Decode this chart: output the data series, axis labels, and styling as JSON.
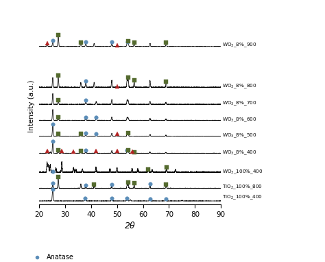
{
  "xlabel": "2θ",
  "ylabel": "Intensity (a.u.)",
  "x_ticks": [
    20,
    30,
    40,
    50,
    60,
    70,
    80,
    90
  ],
  "anatase_color": "#5B8DB8",
  "rutile_color": "#556B2F",
  "wo3_color": "#B22222",
  "offsets": [
    0.0,
    0.55,
    1.25,
    2.1,
    2.85,
    3.55,
    4.25,
    5.0,
    6.8
  ],
  "label_offsets": [
    0.15,
    0.62,
    1.28,
    2.12,
    2.88,
    3.58,
    4.28,
    5.05,
    6.85
  ],
  "label_names": [
    "TiO$_2$_100%_400",
    "TiO$_2$_100%_800",
    "WO$_3$_100%_400",
    "WO$_3$_8%_400",
    "WO$_3$_8%_500",
    "WO$_3$_8%_600",
    "WO$_3$_8%_700",
    "WO$_3$_8%_800",
    "WO$_3$_8%_900"
  ],
  "patterns": [
    {
      "name": "TiO2_400",
      "peaks": [
        25.28,
        37.8,
        48.0,
        53.9,
        55.1,
        62.7,
        68.8,
        75.0
      ],
      "heights": [
        3.5,
        0.55,
        0.7,
        0.65,
        0.4,
        0.45,
        0.3,
        0.2
      ],
      "fwhm": 0.4,
      "noise": 0.025,
      "anatase_markers": [
        25.28,
        37.8,
        48.0,
        53.9,
        62.7,
        68.8
      ],
      "rutile_markers": [],
      "wo3_markers": []
    },
    {
      "name": "TiO2_800",
      "peaks": [
        25.3,
        27.4,
        36.1,
        38.0,
        41.2,
        48.0,
        53.9,
        54.3,
        56.6,
        62.7,
        68.9
      ],
      "heights": [
        0.45,
        1.1,
        0.45,
        0.25,
        0.35,
        0.3,
        0.35,
        0.55,
        0.42,
        0.35,
        0.35
      ],
      "fwhm": 0.35,
      "noise": 0.02,
      "anatase_markers": [
        25.3,
        38.0,
        48.0,
        62.7
      ],
      "rutile_markers": [
        27.4,
        41.2,
        54.3,
        56.6,
        68.9
      ],
      "wo3_markers": []
    },
    {
      "name": "WO3_100_400",
      "peaks": [
        23.1,
        23.6,
        24.3,
        26.5,
        28.8,
        33.3,
        34.2,
        36.7,
        41.9,
        47.3,
        50.0,
        55.8,
        58.0,
        62.0,
        63.5,
        69.0,
        72.5
      ],
      "heights": [
        0.65,
        0.5,
        0.45,
        0.3,
        0.65,
        0.3,
        0.22,
        0.22,
        0.32,
        0.22,
        0.32,
        0.27,
        0.22,
        0.22,
        0.18,
        0.22,
        0.18
      ],
      "fwhm": 0.4,
      "noise": 0.03,
      "anatase_markers": [
        25.3
      ],
      "rutile_markers": [
        62.0,
        69.0
      ],
      "wo3_markers": []
    },
    {
      "name": "WO3_8_400",
      "peaks": [
        23.1,
        24.3,
        25.3,
        27.4,
        28.8,
        33.3,
        36.1,
        38.0,
        41.9,
        48.0,
        50.0,
        53.9,
        54.3,
        55.8,
        62.7,
        68.8
      ],
      "heights": [
        0.35,
        0.32,
        3.2,
        0.55,
        0.52,
        0.25,
        0.52,
        0.62,
        0.42,
        0.75,
        0.38,
        0.68,
        0.62,
        0.32,
        0.42,
        0.28
      ],
      "fwhm": 0.35,
      "noise": 0.025,
      "anatase_markers": [
        25.3,
        38.0,
        53.9
      ],
      "rutile_markers": [
        27.4,
        36.1,
        54.3,
        56.6
      ],
      "wo3_markers": [
        23.1,
        28.8,
        33.3,
        41.9,
        50.0,
        55.8
      ]
    },
    {
      "name": "WO3_8_500",
      "peaks": [
        25.3,
        27.4,
        36.1,
        38.0,
        42.0,
        48.0,
        50.0,
        53.9,
        54.3,
        62.7,
        68.8
      ],
      "heights": [
        2.8,
        0.42,
        0.32,
        0.58,
        0.38,
        0.78,
        0.32,
        0.72,
        0.58,
        0.42,
        0.28
      ],
      "fwhm": 0.35,
      "noise": 0.022,
      "anatase_markers": [
        25.3,
        38.0,
        42.0
      ],
      "rutile_markers": [
        27.4,
        36.1,
        54.3
      ],
      "wo3_markers": [
        50.0
      ]
    },
    {
      "name": "WO3_8_600",
      "peaks": [
        25.3,
        27.4,
        38.0,
        42.0,
        48.0,
        53.9,
        54.3,
        62.7,
        68.8
      ],
      "heights": [
        2.5,
        0.48,
        0.52,
        0.42,
        0.72,
        0.68,
        0.58,
        0.42,
        0.28
      ],
      "fwhm": 0.35,
      "noise": 0.02,
      "anatase_markers": [
        38.0,
        42.0
      ],
      "rutile_markers": [
        27.4
      ],
      "wo3_markers": []
    },
    {
      "name": "WO3_8_700",
      "peaks": [
        25.3,
        27.4,
        38.0,
        42.0,
        48.0,
        53.9,
        54.3,
        62.7,
        68.8
      ],
      "heights": [
        1.6,
        0.52,
        0.52,
        0.42,
        0.72,
        0.68,
        0.62,
        0.45,
        0.32
      ],
      "fwhm": 0.35,
      "noise": 0.02,
      "anatase_markers": [
        38.0
      ],
      "rutile_markers": [
        27.4
      ],
      "wo3_markers": []
    },
    {
      "name": "WO3_8_800",
      "peaks": [
        25.3,
        27.4,
        36.1,
        38.0,
        41.2,
        48.0,
        53.9,
        54.3,
        56.6,
        62.7,
        68.9
      ],
      "heights": [
        0.85,
        0.95,
        0.42,
        0.48,
        0.42,
        0.62,
        0.72,
        0.72,
        0.52,
        0.58,
        0.42
      ],
      "fwhm": 0.35,
      "noise": 0.018,
      "anatase_markers": [
        38.0
      ],
      "rutile_markers": [
        27.4,
        54.3,
        56.6,
        68.9
      ],
      "wo3_markers": [
        50.0
      ]
    },
    {
      "name": "WO3_8_900",
      "peaks": [
        23.1,
        25.3,
        27.4,
        36.1,
        38.0,
        41.2,
        48.0,
        53.9,
        54.3,
        56.6,
        62.7,
        68.9
      ],
      "heights": [
        0.55,
        1.0,
        2.2,
        0.68,
        0.72,
        0.62,
        0.75,
        0.78,
        0.85,
        0.65,
        0.65,
        0.55
      ],
      "fwhm": 0.35,
      "noise": 0.015,
      "anatase_markers": [
        25.3,
        38.0,
        48.0,
        54.0
      ],
      "rutile_markers": [
        27.4,
        36.1,
        54.3,
        56.6,
        68.9
      ],
      "wo3_markers": [
        23.1,
        50.0
      ]
    }
  ]
}
